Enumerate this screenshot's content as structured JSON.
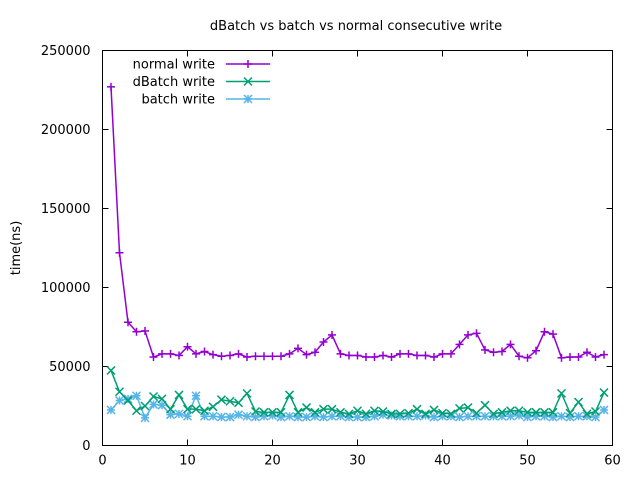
{
  "chart_data": {
    "type": "line",
    "title": "dBatch vs batch vs normal consecutive write",
    "xlabel": "",
    "ylabel": "time(ns)",
    "xlim": [
      0,
      60
    ],
    "ylim": [
      0,
      250000
    ],
    "xticks": [
      0,
      10,
      20,
      30,
      40,
      50,
      60
    ],
    "yticks": [
      0,
      50000,
      100000,
      150000,
      200000,
      250000
    ],
    "grid": false,
    "legend_position": "top-left",
    "x": [
      1,
      2,
      3,
      4,
      5,
      6,
      7,
      8,
      9,
      10,
      11,
      12,
      13,
      14,
      15,
      16,
      17,
      18,
      19,
      20,
      21,
      22,
      23,
      24,
      25,
      26,
      27,
      28,
      29,
      30,
      31,
      32,
      33,
      34,
      35,
      36,
      37,
      38,
      39,
      40,
      41,
      42,
      43,
      44,
      45,
      46,
      47,
      48,
      49,
      50,
      51,
      52,
      53,
      54,
      55,
      56,
      57,
      58,
      59
    ],
    "series": [
      {
        "name": "normal write",
        "color": "#9400d3",
        "marker": "plus",
        "values": [
          227000,
          122000,
          78000,
          72000,
          72500,
          56000,
          58000,
          58000,
          57000,
          62500,
          58000,
          59500,
          57500,
          56500,
          57000,
          58000,
          56000,
          56500,
          56500,
          56500,
          56500,
          58000,
          61500,
          57500,
          59000,
          65500,
          70000,
          58000,
          57000,
          57000,
          56000,
          56000,
          57000,
          56000,
          58000,
          58000,
          57000,
          57000,
          56000,
          58000,
          58000,
          64000,
          70000,
          71000,
          60500,
          59000,
          59500,
          64000,
          56500,
          55500,
          60000,
          72000,
          70500,
          55500,
          56000,
          56000,
          59000,
          56000,
          57500
        ]
      },
      {
        "name": "dBatch write",
        "color": "#009e73",
        "marker": "cross",
        "values": [
          47500,
          34000,
          28500,
          22000,
          25000,
          31000,
          29500,
          23000,
          32000,
          23000,
          23000,
          22000,
          24500,
          29000,
          28000,
          27000,
          33000,
          21500,
          21000,
          21000,
          21000,
          32000,
          21000,
          24000,
          21000,
          23000,
          23000,
          21000,
          20000,
          22000,
          20000,
          22000,
          21500,
          20000,
          20000,
          20500,
          23000,
          20000,
          22500,
          20500,
          20000,
          23500,
          24000,
          20500,
          25500,
          20000,
          21000,
          22000,
          22000,
          21000,
          21000,
          21000,
          21000,
          33000,
          20500,
          27500,
          20000,
          21500,
          33500
        ]
      },
      {
        "name": "batch write",
        "color": "#56b4e9",
        "marker": "star",
        "values": [
          22500,
          28500,
          29500,
          31500,
          17500,
          26000,
          25500,
          19500,
          20000,
          18500,
          31500,
          18500,
          18500,
          18000,
          18000,
          19500,
          18500,
          18000,
          18500,
          19000,
          18000,
          18500,
          18000,
          18000,
          18500,
          18000,
          18500,
          18500,
          18000,
          18000,
          18000,
          18500,
          19500,
          19000,
          18500,
          18500,
          18500,
          19000,
          18000,
          18500,
          18500,
          18000,
          18500,
          18500,
          18500,
          18500,
          18500,
          18500,
          19000,
          18000,
          18500,
          18500,
          18000,
          18500,
          18000,
          18500,
          18500,
          18000,
          22500
        ]
      }
    ]
  }
}
